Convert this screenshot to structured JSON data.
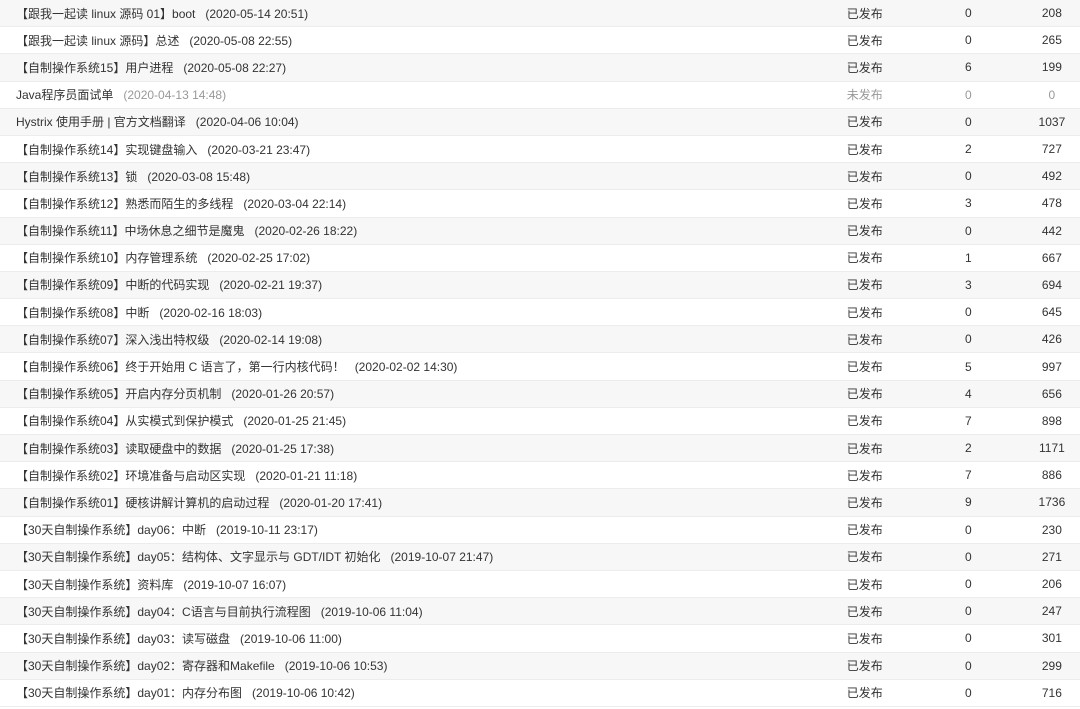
{
  "rows": [
    {
      "title": "【跟我一起读 linux 源码 01】boot",
      "date": "(2020-05-14 20:51)",
      "status": "已发布",
      "comments": "0",
      "views": "208"
    },
    {
      "title": "【跟我一起读 linux 源码】总述",
      "date": "(2020-05-08 22:55)",
      "status": "已发布",
      "comments": "0",
      "views": "265"
    },
    {
      "title": "【自制操作系统15】用户进程",
      "date": "(2020-05-08 22:27)",
      "status": "已发布",
      "comments": "6",
      "views": "199"
    },
    {
      "title": "Java程序员面试单",
      "date": "(2020-04-13 14:48)",
      "status": "未发布",
      "comments": "0",
      "views": "0"
    },
    {
      "title": "Hystrix 使用手册 | 官方文档翻译",
      "date": "(2020-04-06 10:04)",
      "status": "已发布",
      "comments": "0",
      "views": "1037"
    },
    {
      "title": "【自制操作系统14】实现键盘输入",
      "date": "(2020-03-21 23:47)",
      "status": "已发布",
      "comments": "2",
      "views": "727"
    },
    {
      "title": "【自制操作系统13】锁",
      "date": "(2020-03-08 15:48)",
      "status": "已发布",
      "comments": "0",
      "views": "492"
    },
    {
      "title": "【自制操作系统12】熟悉而陌生的多线程",
      "date": "(2020-03-04 22:14)",
      "status": "已发布",
      "comments": "3",
      "views": "478"
    },
    {
      "title": "【自制操作系统11】中场休息之细节是魔鬼",
      "date": "(2020-02-26 18:22)",
      "status": "已发布",
      "comments": "0",
      "views": "442"
    },
    {
      "title": "【自制操作系统10】内存管理系统",
      "date": "(2020-02-25 17:02)",
      "status": "已发布",
      "comments": "1",
      "views": "667"
    },
    {
      "title": "【自制操作系统09】中断的代码实现",
      "date": "(2020-02-21 19:37)",
      "status": "已发布",
      "comments": "3",
      "views": "694"
    },
    {
      "title": "【自制操作系统08】中断",
      "date": "(2020-02-16 18:03)",
      "status": "已发布",
      "comments": "0",
      "views": "645"
    },
    {
      "title": "【自制操作系统07】深入浅出特权级",
      "date": "(2020-02-14 19:08)",
      "status": "已发布",
      "comments": "0",
      "views": "426"
    },
    {
      "title": "【自制操作系统06】终于开始用 C 语言了，第一行内核代码！",
      "date": "(2020-02-02 14:30)",
      "status": "已发布",
      "comments": "5",
      "views": "997"
    },
    {
      "title": "【自制操作系统05】开启内存分页机制",
      "date": "(2020-01-26 20:57)",
      "status": "已发布",
      "comments": "4",
      "views": "656"
    },
    {
      "title": "【自制操作系统04】从实模式到保护模式",
      "date": "(2020-01-25 21:45)",
      "status": "已发布",
      "comments": "7",
      "views": "898"
    },
    {
      "title": "【自制操作系统03】读取硬盘中的数据",
      "date": "(2020-01-25 17:38)",
      "status": "已发布",
      "comments": "2",
      "views": "1171"
    },
    {
      "title": "【自制操作系统02】环境准备与启动区实现",
      "date": "(2020-01-21 11:18)",
      "status": "已发布",
      "comments": "7",
      "views": "886"
    },
    {
      "title": "【自制操作系统01】硬核讲解计算机的启动过程",
      "date": "(2020-01-20 17:41)",
      "status": "已发布",
      "comments": "9",
      "views": "1736"
    },
    {
      "title": "【30天自制操作系统】day06：中断",
      "date": "(2019-10-11 23:17)",
      "status": "已发布",
      "comments": "0",
      "views": "230"
    },
    {
      "title": "【30天自制操作系统】day05：结构体、文字显示与 GDT/IDT 初始化",
      "date": "(2019-10-07 21:47)",
      "status": "已发布",
      "comments": "0",
      "views": "271"
    },
    {
      "title": "【30天自制操作系统】资料库",
      "date": "(2019-10-07 16:07)",
      "status": "已发布",
      "comments": "0",
      "views": "206"
    },
    {
      "title": "【30天自制操作系统】day04：C语言与目前执行流程图",
      "date": "(2019-10-06 11:04)",
      "status": "已发布",
      "comments": "0",
      "views": "247"
    },
    {
      "title": "【30天自制操作系统】day03：读写磁盘",
      "date": "(2019-10-06 11:00)",
      "status": "已发布",
      "comments": "0",
      "views": "301"
    },
    {
      "title": "【30天自制操作系统】day02：寄存器和Makefile",
      "date": "(2019-10-06 10:53)",
      "status": "已发布",
      "comments": "0",
      "views": "299"
    },
    {
      "title": "【30天自制操作系统】day01：内存分布图",
      "date": "(2019-10-06 10:42)",
      "status": "已发布",
      "comments": "0",
      "views": "716"
    }
  ]
}
